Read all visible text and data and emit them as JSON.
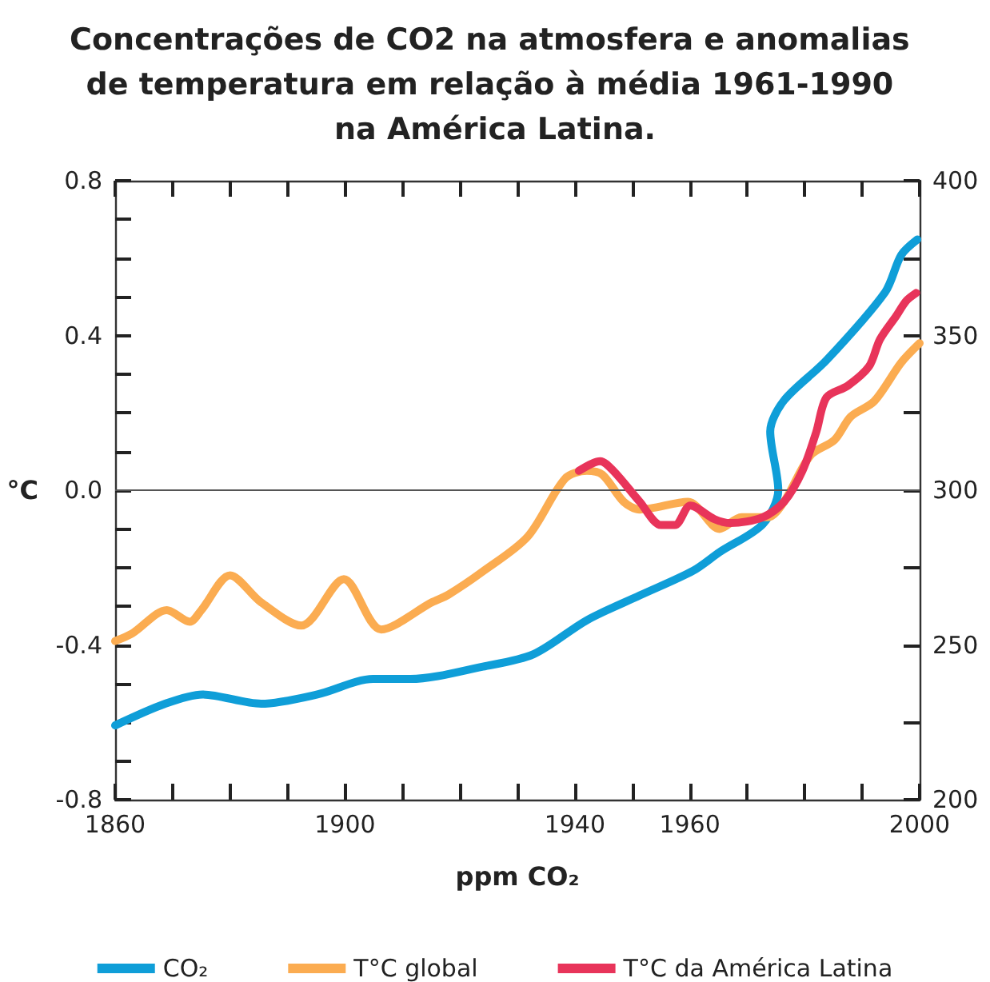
{
  "chart_data": {
    "type": "line",
    "title": "Concentrações de CO2 na atmosfera e anomalias de temperatura em relação à média 1961-1990 na América Latina.",
    "xlabel": "ppm CO₂",
    "ylabel": "°C",
    "xlim": [
      1860,
      2000
    ],
    "xticks": [
      1860,
      {
        "value": 1870,
        "label": null
      },
      {
        "value": 1880,
        "label": null
      },
      {
        "value": 1890,
        "label": null
      },
      1900,
      {
        "value": 1910,
        "label": null
      },
      {
        "value": 1920,
        "label": null
      },
      {
        "value": 1930,
        "label": null
      },
      1940,
      {
        "value": 1950,
        "label": null
      },
      1960,
      {
        "value": 1970,
        "label": null
      },
      {
        "value": 1980,
        "label": null
      },
      {
        "value": 1990,
        "label": null
      },
      2000
    ],
    "ylim": [
      -0.8,
      0.8
    ],
    "yticks": [
      -0.8,
      {
        "value": -0.7,
        "label": null
      },
      {
        "value": -0.6,
        "label": null
      },
      {
        "value": -0.5,
        "label": null
      },
      -0.4,
      {
        "value": -0.3,
        "label": null
      },
      {
        "value": -0.2,
        "label": null
      },
      {
        "value": -0.1,
        "label": null
      },
      {
        "value": 0,
        "label": "0.0"
      },
      {
        "value": 0.1,
        "label": null
      },
      {
        "value": 0.2,
        "label": null
      },
      {
        "value": 0.3,
        "label": null
      },
      0.4,
      {
        "value": 0.5,
        "label": null
      },
      {
        "value": 0.6,
        "label": null
      },
      {
        "value": 0.7,
        "label": null
      },
      0.8
    ],
    "y2lim": [
      200,
      400
    ],
    "y2ticks": [
      200,
      {
        "value": 225,
        "label": null
      },
      250,
      {
        "value": 275,
        "label": null
      },
      300,
      {
        "value": 325,
        "label": null
      },
      350,
      {
        "value": 375,
        "label": null
      },
      400
    ],
    "ref_lines": [
      {
        "axis": "y",
        "value": 0,
        "color": "#555555"
      }
    ],
    "legend": "bottom",
    "marker": "none",
    "line_style": "solid",
    "grid": false,
    "series": [
      {
        "name": "CO₂",
        "color": "#0f9ed8",
        "axis": "y2",
        "x": [
          1860,
          1868.7,
          1875.2,
          1885.4,
          1895.2,
          1904.9,
          1911.4,
          1924,
          1932.8,
          1942.1,
          1951.3,
          1960.6,
          1965.2,
          1972.7,
          1975.4,
          1974,
          1976.4,
          1983.8,
          1994,
          1996.8,
          1999.6
        ],
        "values": [
          224,
          231,
          234,
          231,
          234,
          239,
          239,
          243,
          247,
          258,
          266,
          274,
          280,
          289,
          300,
          319,
          329,
          342,
          364,
          376,
          381
        ]
      },
      {
        "name": "T°C global",
        "color": "#fbac51",
        "x": [
          1860,
          1863,
          1869,
          1873,
          1875,
          1880,
          1885.4,
          1892.4,
          1899.8,
          1906.3,
          1915.1,
          1918,
          1924,
          1931.8,
          1938.3,
          1942.1,
          1944.8,
          1948.5,
          1951.3,
          1959.7,
          1965.2,
          1969,
          1973.6,
          1976.4,
          1981,
          1985.2,
          1988,
          1992.1,
          1996.8,
          2000
        ],
        "values": [
          -0.39,
          -0.37,
          -0.31,
          -0.34,
          -0.31,
          -0.22,
          -0.29,
          -0.35,
          -0.23,
          -0.36,
          -0.29,
          -0.27,
          -0.21,
          -0.12,
          0.03,
          0.05,
          0.04,
          -0.03,
          -0.05,
          -0.03,
          -0.1,
          -0.07,
          -0.07,
          -0.03,
          0.09,
          0.13,
          0.19,
          0.23,
          0.33,
          0.38
        ]
      },
      {
        "name": "T°C da América Latina",
        "color": "#e8345a",
        "x": [
          1940.7,
          1944.4,
          1946.7,
          1951.3,
          1955,
          1957.4,
          1960.1,
          1964.3,
          1967.1,
          1972.7,
          1976.4,
          1979.6,
          1982,
          1983.8,
          1987.5,
          1991.2,
          1993.1,
          1995.9,
          1997.7,
          1999.4
        ],
        "values": [
          0.05,
          0.075,
          0.05,
          -0.03,
          -0.09,
          -0.09,
          -0.04,
          -0.075,
          -0.085,
          -0.07,
          -0.03,
          0.05,
          0.15,
          0.24,
          0.27,
          0.32,
          0.39,
          0.45,
          0.49,
          0.51
        ]
      }
    ]
  }
}
